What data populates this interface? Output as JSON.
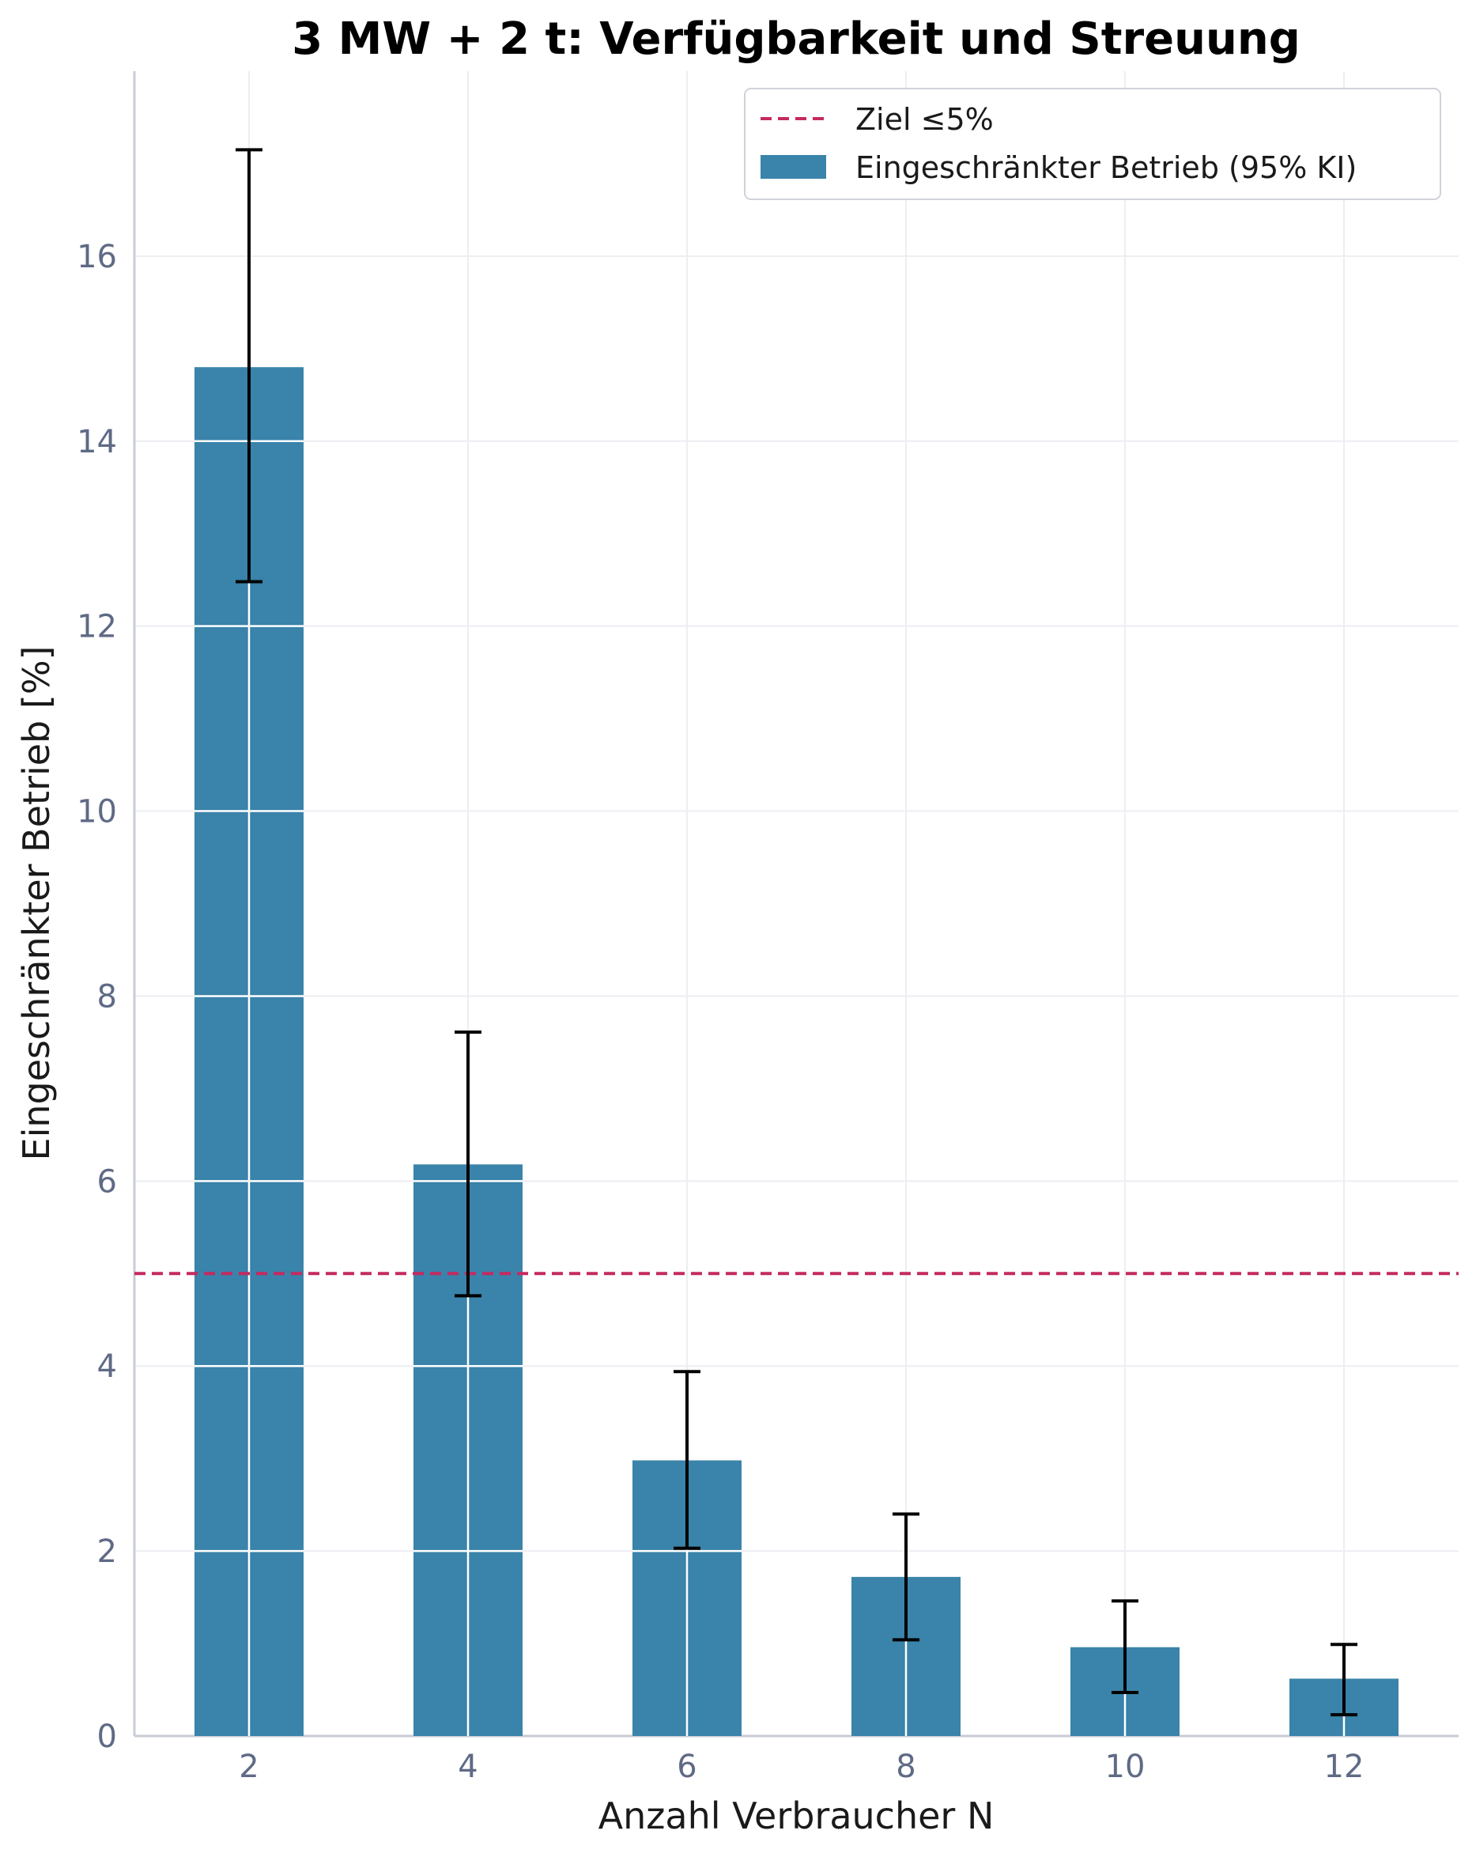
{
  "chart_data": {
    "type": "bar",
    "title": "3 MW + 2 t: Verfügbarkeit und Streuung",
    "xlabel": "Anzahl Verbraucher N",
    "ylabel": "Eingeschränkter Betrieb [%]",
    "categories": [
      "2",
      "4",
      "6",
      "8",
      "10",
      "12"
    ],
    "series": [
      {
        "name": "Eingeschränkter Betrieb (95% KI)",
        "values": [
          14.8,
          6.18,
          2.98,
          1.72,
          0.96,
          0.62
        ],
        "ci_low": [
          12.48,
          4.76,
          2.03,
          1.04,
          0.47,
          0.23
        ],
        "ci_high": [
          17.15,
          7.61,
          3.94,
          2.4,
          1.46,
          0.99
        ],
        "color": "#3a83aa"
      }
    ],
    "reference_line": {
      "label": "Ziel ≤5%",
      "value": 5,
      "color": "#c42a5f",
      "style": "dashed"
    },
    "ylim": [
      0,
      18
    ],
    "yticks": [
      0,
      2,
      4,
      6,
      8,
      10,
      12,
      14,
      16
    ],
    "grid": true,
    "legend_position": "top-right"
  }
}
